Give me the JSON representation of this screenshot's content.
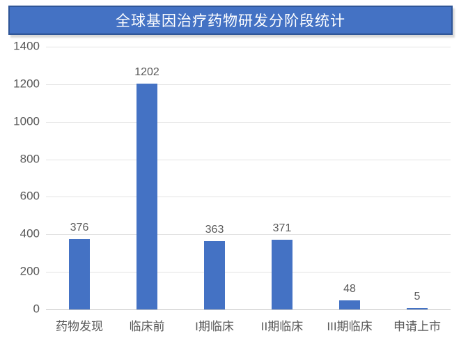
{
  "title": "全球基因治疗药物研发分阶段统计",
  "colors": {
    "bar": "#4472C4",
    "banner_fill": "#4472C4",
    "banner_border": "#2F5597",
    "title_text": "#FFFFFF",
    "gridline": "#E3E3E3",
    "axis_line": "#C6C6C6",
    "tick_text": "#595959",
    "data_label_text": "#595959"
  },
  "chart_data": {
    "type": "bar",
    "title": "全球基因治疗药物研发分阶段统计",
    "categories": [
      "药物发现",
      "临床前",
      "I期临床",
      "II期临床",
      "III期临床",
      "申请上市"
    ],
    "values": [
      376,
      1202,
      363,
      371,
      48,
      5
    ],
    "data_labels": [
      "376",
      "1202",
      "363",
      "371",
      "48",
      "5"
    ],
    "xlabel": "",
    "ylabel": "",
    "ylim": [
      0,
      1400
    ],
    "yticks": [
      0,
      200,
      400,
      600,
      800,
      1000,
      1200,
      1400
    ],
    "grid": true,
    "legend": false,
    "bar_color": "#4472C4"
  }
}
